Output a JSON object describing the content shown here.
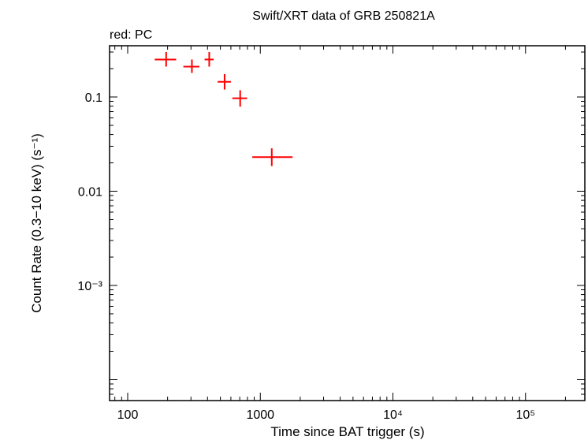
{
  "chart_data": {
    "type": "scatter",
    "title": "Swift/XRT data of GRB 250821A",
    "subtitle": "red: PC",
    "xlabel": "Time since BAT trigger (s)",
    "ylabel": "Count Rate (0.3−10 keV) (s⁻¹)",
    "xscale": "log",
    "yscale": "log",
    "xlim": [
      73,
      280000
    ],
    "ylim": [
      6e-05,
      0.35
    ],
    "x_ticks": [
      {
        "value": 100,
        "label": "100"
      },
      {
        "value": 1000,
        "label": "1000"
      },
      {
        "value": 10000,
        "label": "10⁴"
      },
      {
        "value": 100000,
        "label": "10⁵"
      }
    ],
    "y_ticks": [
      {
        "value": 0.1,
        "label": "0.1"
      },
      {
        "value": 0.01,
        "label": "0.01"
      },
      {
        "value": 0.001,
        "label": "10⁻³"
      }
    ],
    "grid": false,
    "series": [
      {
        "color": "#ff0000",
        "points": [
          {
            "x": 195,
            "xlo": 160,
            "xhi": 232,
            "y": 0.25,
            "ylo": 0.21,
            "yhi": 0.3
          },
          {
            "x": 305,
            "xlo": 263,
            "xhi": 347,
            "y": 0.21,
            "ylo": 0.18,
            "yhi": 0.25
          },
          {
            "x": 412,
            "xlo": 380,
            "xhi": 445,
            "y": 0.25,
            "ylo": 0.21,
            "yhi": 0.3
          },
          {
            "x": 538,
            "xlo": 477,
            "xhi": 600,
            "y": 0.145,
            "ylo": 0.12,
            "yhi": 0.175
          },
          {
            "x": 705,
            "xlo": 615,
            "xhi": 795,
            "y": 0.097,
            "ylo": 0.079,
            "yhi": 0.118
          },
          {
            "x": 1220,
            "xlo": 870,
            "xhi": 1750,
            "y": 0.023,
            "ylo": 0.0185,
            "yhi": 0.0285
          }
        ]
      }
    ]
  }
}
